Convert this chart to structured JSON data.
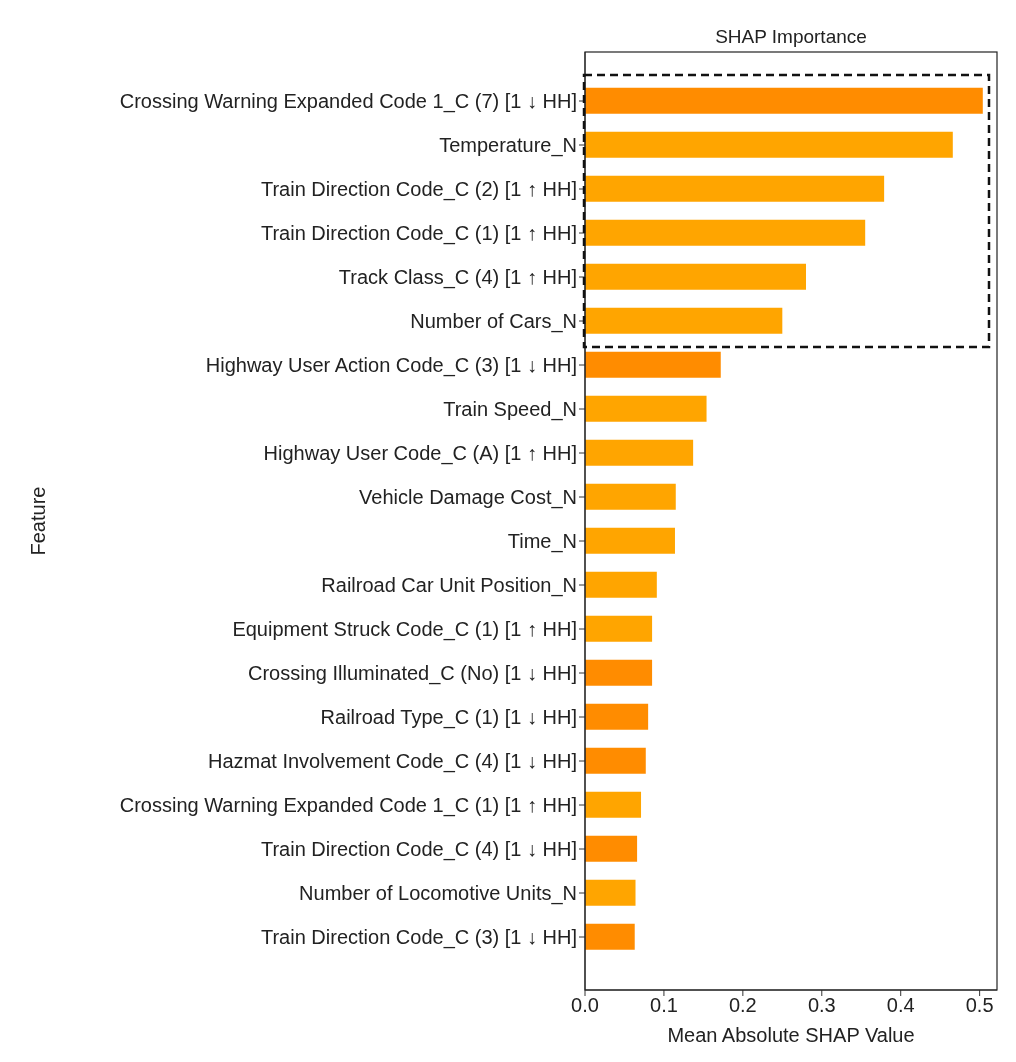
{
  "chart_data": {
    "type": "bar",
    "orientation": "horizontal",
    "title": "SHAP Importance",
    "xlabel": "Mean Absolute SHAP Value",
    "ylabel": "Feature",
    "categories": [
      "Crossing Warning Expanded Code 1_C (7) [1 ↓ HH]",
      "Temperature_N",
      "Train Direction Code_C (2) [1 ↑ HH]",
      "Train Direction Code_C (1) [1 ↑ HH]",
      "Track Class_C (4) [1 ↑ HH]",
      "Number of Cars_N",
      "Highway User Action Code_C (3) [1 ↓ HH]",
      "Train Speed_N",
      "Highway User Code_C (A) [1 ↑ HH]",
      "Vehicle Damage Cost_N",
      "Time_N",
      "Railroad Car Unit Position_N",
      "Equipment Struck Code_C (1) [1 ↑ HH]",
      "Crossing Illuminated_C (No) [1 ↓ HH]",
      "Railroad Type_C (1) [1 ↓ HH]",
      "Hazmat Involvement Code_C (4) [1 ↓ HH]",
      "Crossing Warning Expanded Code 1_C (1) [1 ↑ HH]",
      "Train Direction Code_C (4) [1 ↓ HH]",
      "Number of Locomotive Units_N",
      "Train Direction Code_C (3) [1 ↓ HH]"
    ],
    "values": [
      0.504,
      0.466,
      0.379,
      0.355,
      0.28,
      0.25,
      0.172,
      0.154,
      0.137,
      0.115,
      0.114,
      0.091,
      0.085,
      0.085,
      0.08,
      0.077,
      0.071,
      0.066,
      0.064,
      0.063
    ],
    "colors": [
      "#ff8c00",
      "#ffa500",
      "#ffa500",
      "#ffa500",
      "#ffa500",
      "#ffa500",
      "#ff8c00",
      "#ffa500",
      "#ffa500",
      "#ffa500",
      "#ffa500",
      "#ffa500",
      "#ffa500",
      "#ff8c00",
      "#ff8c00",
      "#ff8c00",
      "#ffa500",
      "#ff8c00",
      "#ffa500",
      "#ff8c00"
    ],
    "xlim": [
      0,
      0.522
    ],
    "xticks": [
      {
        "value": 0,
        "label": "0.0"
      },
      0.1,
      0.2,
      0.3,
      0.4,
      0.5
    ]
  }
}
